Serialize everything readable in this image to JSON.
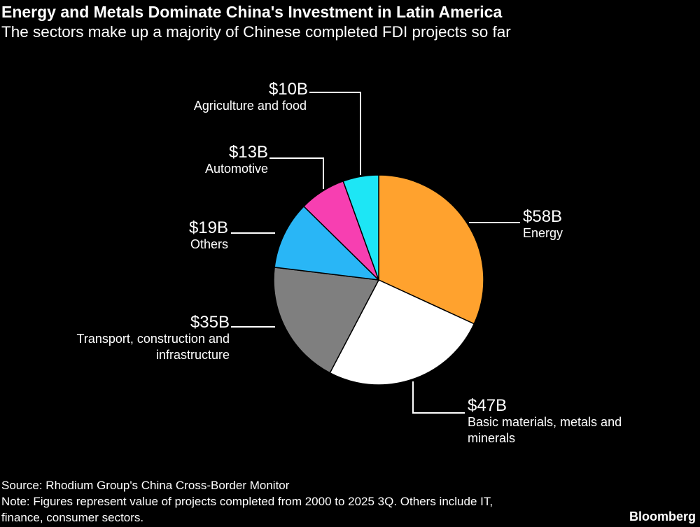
{
  "header": {
    "title": "Energy and Metals Dominate China's Investment in Latin America",
    "subtitle": "The sectors make up a majority of Chinese completed FDI projects so far"
  },
  "chart_data": {
    "type": "pie",
    "unit": "USD billions",
    "start": "top, clockwise",
    "slices": [
      {
        "name": "Energy",
        "value": 58,
        "label": "$58B",
        "color": "#ffa22e"
      },
      {
        "name": "Basic materials, metals and minerals",
        "value": 47,
        "label": "$47B",
        "color": "#ffffff"
      },
      {
        "name": "Transport, construction and infrastructure",
        "value": 35,
        "label": "$35B",
        "color": "#7f7f7f"
      },
      {
        "name": "Others",
        "value": 19,
        "label": "$19B",
        "color": "#29b6f6"
      },
      {
        "name": "Automotive",
        "value": 13,
        "label": "$13B",
        "color": "#f73fb1"
      },
      {
        "name": "Agriculture and food",
        "value": 10,
        "label": "$10B",
        "color": "#1de6f5"
      }
    ]
  },
  "footer": {
    "source": "Source: Rhodium Group's China Cross-Border Monitor",
    "note_line1": "Note: Figures represent value of projects completed from 2000 to 2025 3Q. Others include IT,",
    "note_line2": "finance, consumer sectors.",
    "brand": "Bloomberg"
  }
}
